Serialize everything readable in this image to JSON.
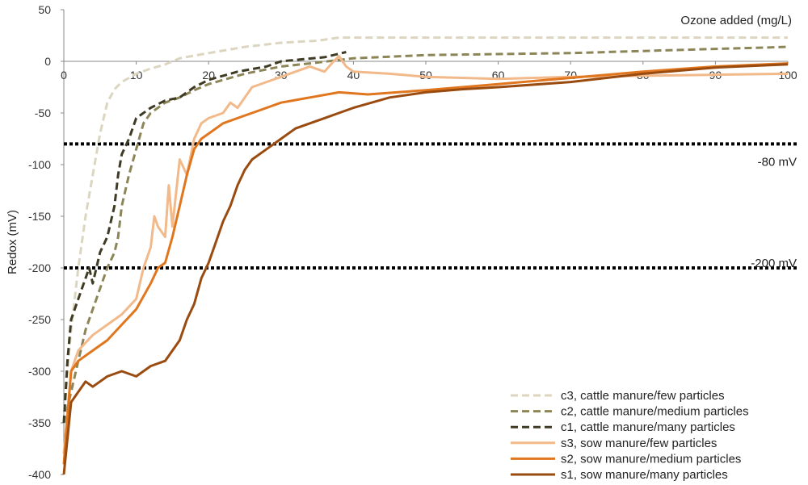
{
  "chart_data": {
    "type": "line",
    "xlabel": "Ozone added (mg/L)",
    "ylabel": "Redox (mV)",
    "xlim": [
      0,
      100
    ],
    "ylim": [
      -400,
      50
    ],
    "x_ticks": [
      "0",
      "10",
      "20",
      "30",
      "40",
      "50",
      "60",
      "70",
      "80",
      "90",
      "100"
    ],
    "y_ticks": [
      "50",
      "0",
      "-50",
      "-100",
      "-150",
      "-200",
      "-250",
      "-300",
      "-350",
      "-400"
    ],
    "grid": false,
    "legend_position": "bottom-right",
    "reference_lines": [
      {
        "y": -80,
        "label": "-80 mV",
        "style": "dotted"
      },
      {
        "y": -200,
        "label": "-200 mV",
        "style": "dotted"
      }
    ],
    "series": [
      {
        "name": "c3, cattle manure/few particles",
        "color": "#dcd6c0",
        "dash": "dashed",
        "x": [
          0,
          0.5,
          1,
          2,
          3,
          4,
          5,
          6,
          7,
          8,
          10,
          12,
          14,
          16,
          20,
          25,
          30,
          35,
          38,
          45,
          60,
          80,
          100
        ],
        "y": [
          -350,
          -300,
          -260,
          -200,
          -150,
          -110,
          -70,
          -40,
          -27,
          -20,
          -12,
          -7,
          -3,
          3,
          8,
          14,
          18,
          20,
          23,
          23,
          23,
          23,
          23
        ]
      },
      {
        "name": "c2, cattle manure/medium particles",
        "color": "#8c8558",
        "dash": "dashed",
        "x": [
          0,
          1,
          2,
          3,
          4,
          5,
          6,
          7,
          7.5,
          8,
          9,
          10,
          11,
          12,
          14,
          16,
          18,
          20,
          25,
          30,
          34,
          40,
          50,
          60,
          70,
          80,
          90,
          100
        ],
        "y": [
          -350,
          -320,
          -290,
          -260,
          -240,
          -220,
          -200,
          -185,
          -170,
          -140,
          -110,
          -85,
          -60,
          -50,
          -40,
          -35,
          -28,
          -22,
          -12,
          -5,
          -2,
          3,
          6,
          7,
          8,
          10,
          12,
          14
        ]
      },
      {
        "name": "c1, cattle manure/many particles",
        "color": "#3e3a24",
        "dash": "dashed",
        "x": [
          0,
          0.5,
          1,
          2,
          3,
          3.5,
          4,
          4.5,
          5,
          6,
          7,
          7.5,
          8,
          9,
          10,
          12,
          14,
          16,
          18,
          20,
          24,
          28,
          30,
          33,
          36,
          39
        ],
        "y": [
          -350,
          -290,
          -250,
          -230,
          -210,
          -200,
          -215,
          -200,
          -185,
          -170,
          -140,
          -110,
          -90,
          -75,
          -55,
          -45,
          -38,
          -35,
          -25,
          -18,
          -10,
          -5,
          0,
          2,
          4,
          9
        ]
      },
      {
        "name": "s3, sow manure/few particles",
        "color": "#f2b98a",
        "dash": "solid",
        "x": [
          0,
          1,
          2,
          4,
          6,
          8,
          10,
          11,
          12,
          12.5,
          13,
          14,
          14.5,
          15,
          16,
          17,
          18,
          19,
          20,
          22,
          23,
          24,
          26,
          28,
          30,
          32,
          34,
          36,
          37,
          38,
          39,
          40,
          45,
          50,
          55,
          60,
          70,
          80,
          90,
          100
        ],
        "y": [
          -380,
          -300,
          -280,
          -265,
          -255,
          -245,
          -230,
          -200,
          -180,
          -150,
          -160,
          -170,
          -120,
          -160,
          -95,
          -110,
          -75,
          -60,
          -55,
          -50,
          -40,
          -45,
          -25,
          -20,
          -15,
          -10,
          -5,
          -10,
          -2,
          5,
          -5,
          -10,
          -12,
          -15,
          -16,
          -17,
          -15,
          -14,
          -13,
          -12
        ]
      },
      {
        "name": "s2, sow manure/medium particles",
        "color": "#e0761e",
        "dash": "solid",
        "x": [
          0,
          1,
          2,
          4,
          6,
          8,
          10,
          12,
          13,
          14,
          15,
          16,
          17,
          18,
          19,
          20,
          22,
          24,
          26,
          28,
          30,
          34,
          38,
          42,
          46,
          50,
          55,
          60,
          70,
          80,
          90,
          100
        ],
        "y": [
          -390,
          -300,
          -290,
          -280,
          -270,
          -255,
          -240,
          -215,
          -200,
          -195,
          -170,
          -140,
          -110,
          -85,
          -75,
          -70,
          -60,
          -55,
          -50,
          -45,
          -40,
          -35,
          -30,
          -32,
          -30,
          -28,
          -25,
          -22,
          -16,
          -10,
          -5,
          -2
        ]
      },
      {
        "name": "s1, sow manure/many particles",
        "color": "#9a4b10",
        "dash": "solid",
        "x": [
          0,
          1,
          2,
          3,
          4,
          6,
          8,
          10,
          12,
          14,
          16,
          17,
          18,
          19,
          20,
          21,
          22,
          23,
          24,
          25,
          26,
          28,
          30,
          32,
          34,
          36,
          38,
          40,
          45,
          50,
          55,
          60,
          70,
          80,
          90,
          100
        ],
        "y": [
          -400,
          -330,
          -320,
          -310,
          -315,
          -305,
          -300,
          -305,
          -295,
          -290,
          -270,
          -250,
          -235,
          -210,
          -195,
          -175,
          -155,
          -140,
          -120,
          -105,
          -95,
          -85,
          -75,
          -65,
          -60,
          -55,
          -50,
          -45,
          -35,
          -30,
          -27,
          -25,
          -20,
          -12,
          -6,
          -3
        ]
      }
    ]
  }
}
